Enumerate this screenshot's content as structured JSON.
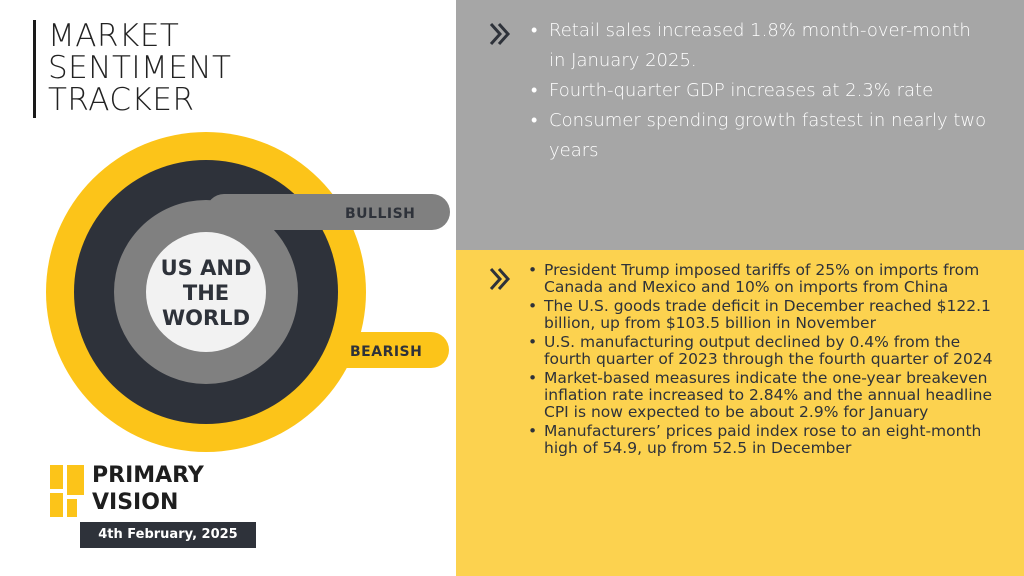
{
  "title": {
    "lines": [
      "MARKET",
      "SENTIMENT",
      "TRACKER"
    ]
  },
  "gauge": {
    "bullish_label": "BULLISH",
    "bearish_label": "BEARISH",
    "center_lines": [
      "US AND",
      "THE",
      "WORLD"
    ],
    "colors": {
      "bullish": "#808080",
      "bearish": "#fcc419",
      "ring_dark": "#2e323a",
      "center": "#f2f2f2"
    }
  },
  "logo": {
    "lines": [
      "PRIMARY",
      "VISION"
    ],
    "icon": "primary-vision-logo-mark"
  },
  "date": "4th February, 2025",
  "bullish_points": [
    "Retail sales increased 1.8% month-over-month in January 2025.",
    "Fourth-quarter GDP increases at 2.3% rate",
    "Consumer spending growth fastest in nearly two years"
  ],
  "bearish_points": [
    "President Trump imposed tariffs of 25% on imports from Canada and Mexico and 10% on imports from China",
    "The U.S. goods trade deficit in December reached $122.1 billion, up from $103.5 billion in November",
    "U.S. manufacturing output declined by 0.4% from the fourth quarter of 2023 through the fourth quarter of 2024",
    "Market-based measures indicate the one-year breakeven inflation rate increased to 2.84% and the annual headline CPI is now expected to be about 2.9% for January",
    "Manufacturers’ prices paid index rose to an eight-month high of 54.9, up from 52.5 in December"
  ],
  "icons": {
    "section_marker": "double-chevron-right-icon"
  },
  "panel_colors": {
    "bullish_panel": "#a6a6a6",
    "bearish_panel": "#fcd24f"
  }
}
